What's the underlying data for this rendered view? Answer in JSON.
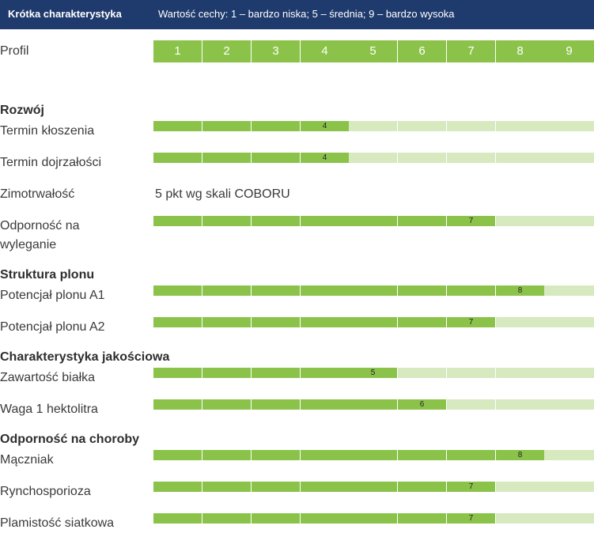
{
  "header": {
    "title": "Krótka charakterystyka",
    "scale_note": "Wartość cechy: 1 – bardzo niska; 5 – średnia; 9 – bardzo wysoka"
  },
  "profile": {
    "label": "Profil",
    "values": [
      "1",
      "2",
      "3",
      "4",
      "5",
      "6",
      "7",
      "8",
      "9"
    ]
  },
  "colors": {
    "header_bg": "#1f3a6c",
    "filled": "#8bc34a",
    "empty": "#d6e9bf"
  },
  "chart_data": {
    "type": "bar",
    "xlim": [
      1,
      9
    ],
    "sections": [
      {
        "title": "Rozwój",
        "traits": [
          {
            "name": "Termin kłoszenia",
            "value": 4
          },
          {
            "name": "Termin dojrzałości",
            "value": 4
          },
          {
            "name": "Zimotrwałość",
            "value": null,
            "note": "5 pkt wg skali COBORU"
          },
          {
            "name": "Odporność na\nwyleganie",
            "value": 7
          }
        ]
      },
      {
        "title": "Struktura plonu",
        "traits": [
          {
            "name": "Potencjał plonu A1",
            "value": 8
          },
          {
            "name": "Potencjał plonu A2",
            "value": 7
          }
        ]
      },
      {
        "title": "Charakterystyka jakościowa",
        "traits": [
          {
            "name": "Zawartość białka",
            "value": 5
          },
          {
            "name": "Waga 1 hektolitra",
            "value": 6
          }
        ]
      },
      {
        "title": "Odporność na choroby",
        "traits": [
          {
            "name": "Mączniak",
            "value": 8
          },
          {
            "name": "Rynchosporioza",
            "value": 7
          },
          {
            "name": "Plamistość siatkowa",
            "value": 7
          }
        ]
      }
    ]
  }
}
